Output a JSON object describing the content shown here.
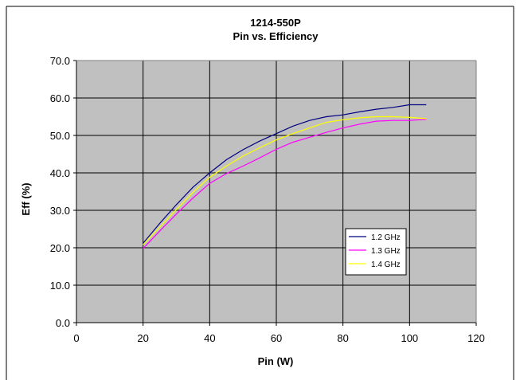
{
  "chart_data": {
    "type": "line",
    "title": "1214-550P",
    "subtitle": "Pin vs. Efficiency",
    "xlabel": "Pin (W)",
    "ylabel": "Eff (%)",
    "xlim": [
      0,
      120
    ],
    "ylim": [
      0,
      70
    ],
    "x_ticks": [
      "0",
      "20",
      "40",
      "60",
      "80",
      "100",
      "120"
    ],
    "y_ticks": [
      "0.0",
      "10.0",
      "20.0",
      "30.0",
      "40.0",
      "50.0",
      "60.0",
      "70.0"
    ],
    "grid": true,
    "plot_background": "#c0c0c0",
    "legend_position": "right-middle",
    "series": [
      {
        "name": "1.2 GHz",
        "color": "#000080",
        "points": [
          [
            20,
            21.2
          ],
          [
            25,
            26.5
          ],
          [
            30,
            31.5
          ],
          [
            35,
            36.2
          ],
          [
            40,
            40.0
          ],
          [
            45,
            43.5
          ],
          [
            50,
            46.2
          ],
          [
            55,
            48.5
          ],
          [
            60,
            50.5
          ],
          [
            65,
            52.5
          ],
          [
            70,
            54.0
          ],
          [
            75,
            55.0
          ],
          [
            80,
            55.5
          ],
          [
            85,
            56.3
          ],
          [
            90,
            57.0
          ],
          [
            95,
            57.5
          ],
          [
            100,
            58.2
          ],
          [
            105,
            58.2
          ]
        ]
      },
      {
        "name": "1.3 GHz",
        "color": "#ff00ff",
        "points": [
          [
            20,
            19.8
          ],
          [
            25,
            24.5
          ],
          [
            30,
            29.0
          ],
          [
            35,
            33.3
          ],
          [
            40,
            37.2
          ],
          [
            45,
            39.8
          ],
          [
            50,
            41.8
          ],
          [
            55,
            44.0
          ],
          [
            60,
            46.3
          ],
          [
            65,
            48.2
          ],
          [
            70,
            49.5
          ],
          [
            75,
            50.8
          ],
          [
            80,
            52.0
          ],
          [
            85,
            53.0
          ],
          [
            90,
            53.8
          ],
          [
            95,
            54.0
          ],
          [
            100,
            54.0
          ],
          [
            105,
            54.3
          ]
        ]
      },
      {
        "name": "1.4 GHz",
        "color": "#ffff00",
        "points": [
          [
            20,
            20.8
          ],
          [
            25,
            25.5
          ],
          [
            30,
            30.2
          ],
          [
            35,
            34.8
          ],
          [
            40,
            38.8
          ],
          [
            45,
            41.8
          ],
          [
            50,
            44.5
          ],
          [
            55,
            46.7
          ],
          [
            60,
            48.8
          ],
          [
            65,
            50.5
          ],
          [
            70,
            52.0
          ],
          [
            75,
            53.5
          ],
          [
            80,
            54.2
          ],
          [
            85,
            54.7
          ],
          [
            90,
            55.0
          ],
          [
            95,
            55.0
          ],
          [
            100,
            54.8
          ],
          [
            105,
            54.5
          ]
        ]
      }
    ]
  }
}
